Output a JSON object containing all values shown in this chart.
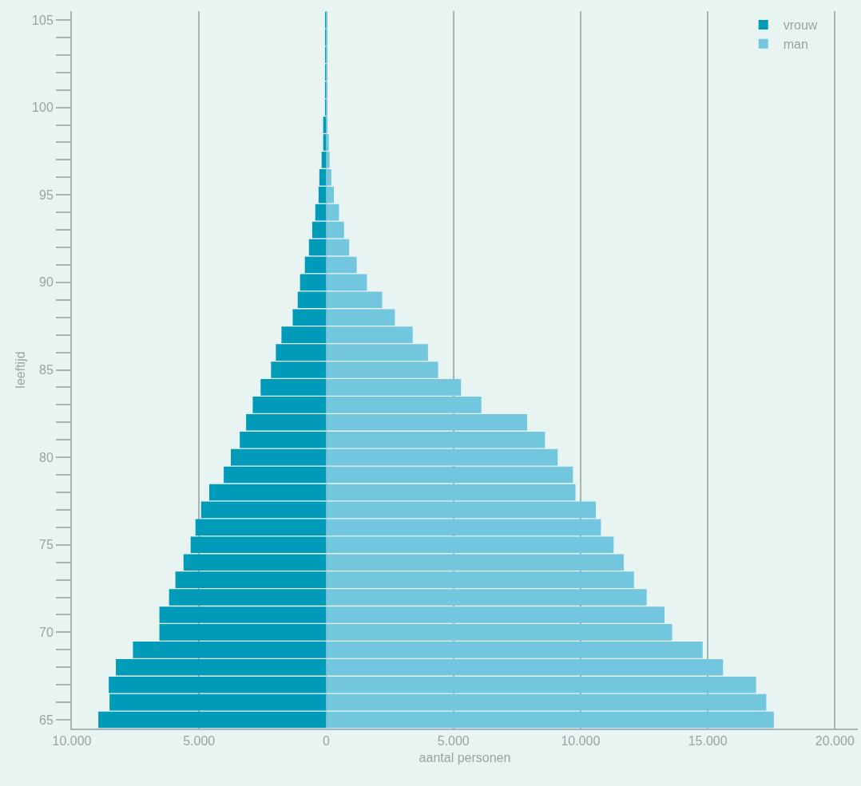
{
  "chart_data": {
    "type": "bar",
    "orientation": "horizontal",
    "xlabel": "aantal personen",
    "ylabel": "leeftijd",
    "categories": [
      "105",
      null,
      null,
      null,
      null,
      "100",
      null,
      null,
      null,
      null,
      "95",
      null,
      null,
      null,
      null,
      "90",
      null,
      null,
      null,
      null,
      "85",
      null,
      null,
      null,
      null,
      "80",
      null,
      null,
      null,
      null,
      "75",
      null,
      null,
      null,
      null,
      "70",
      null,
      null,
      null,
      null,
      "65"
    ],
    "series": [
      {
        "name": "vrouw",
        "color": "#009bb9",
        "values": [
          -20,
          -20,
          -20,
          -30,
          -50,
          -50,
          -120,
          -120,
          -180,
          -270,
          -300,
          -430,
          -550,
          -680,
          -840,
          -1030,
          -1120,
          -1320,
          -1760,
          -1980,
          -2170,
          -2580,
          -2890,
          -3150,
          -3400,
          -3750,
          -4030,
          -4600,
          -4920,
          -5140,
          -5330,
          -5610,
          -5930,
          -6180,
          -6560,
          -6560,
          -7600,
          -8270,
          -8550,
          -8520,
          -8960
        ]
      },
      {
        "name": "man",
        "color": "#72c6de",
        "values": [
          20,
          20,
          20,
          20,
          20,
          30,
          50,
          100,
          130,
          200,
          300,
          500,
          700,
          900,
          1200,
          1600,
          2200,
          2700,
          3400,
          4000,
          4400,
          5300,
          6100,
          7900,
          8600,
          9100,
          9700,
          9800,
          10600,
          10800,
          11300,
          11700,
          12100,
          12600,
          13300,
          13600,
          14800,
          15600,
          16900,
          17300,
          17600
        ]
      }
    ],
    "xlim": [
      -10000,
      20900
    ],
    "xticks": [
      {
        "value": -10000,
        "label": "10.000"
      },
      {
        "value": -5000,
        "label": "5.000"
      },
      0,
      {
        "value": 5000,
        "label": "5.000"
      },
      {
        "value": 10000,
        "label": "10.000"
      },
      {
        "value": 15000,
        "label": "15.000"
      },
      {
        "value": 20000,
        "label": "20.000"
      }
    ],
    "grid": "x",
    "legend": "top right",
    "stacked": true
  }
}
